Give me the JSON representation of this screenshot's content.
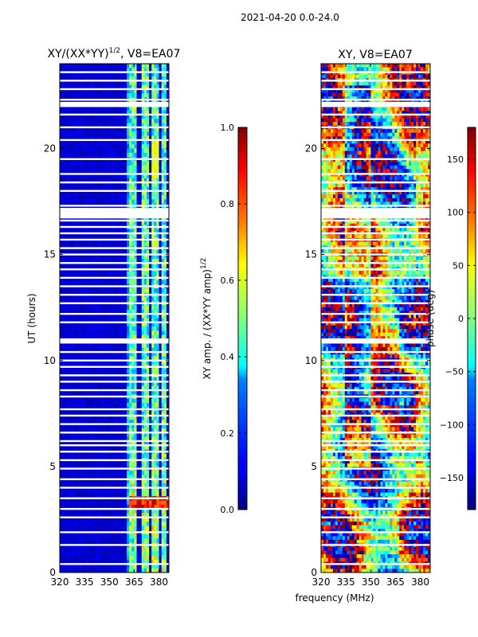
{
  "suptitle": "2021-04-20 0.0-24.0",
  "xlabel_shared": "frequency (MHz)",
  "chart_data": [
    {
      "type": "heatmap",
      "title_main": "XY/(XX*YY)",
      "title_exp": "1/2",
      "title_tail": ", V8=EA07",
      "xlabel": "",
      "ylabel": "UT (hours)",
      "xlim": [
        320,
        386
      ],
      "ylim": [
        0,
        24
      ],
      "x_ticks": [
        320,
        335,
        350,
        365,
        380
      ],
      "x_tick_labels": [
        "320",
        "335",
        "350",
        "365",
        "380"
      ],
      "y_ticks": [
        0,
        5,
        10,
        15,
        20
      ],
      "y_tick_labels": [
        "0",
        "5",
        "10",
        "15",
        "20"
      ],
      "colorbar": {
        "label_main": "XY amp. / (XX*YY amp)",
        "label_exp": "1/2",
        "range": [
          0.0,
          1.0
        ],
        "ticks": [
          0.0,
          0.2,
          0.4,
          0.6,
          0.8,
          1.0
        ],
        "tick_labels": [
          "0.0",
          "0.2",
          "0.4",
          "0.6",
          "0.8",
          "1.0"
        ],
        "colormap": "jet"
      },
      "bright_channels_mhz": [
        [
          362,
          367
        ],
        [
          369,
          374
        ],
        [
          375,
          380
        ],
        [
          381,
          384
        ]
      ],
      "gap_rows_hours": [
        0.4,
        1.3,
        1.9,
        2.6,
        3.0,
        3.5,
        4.0,
        4.4,
        4.9,
        5.3,
        5.7,
        6.0,
        6.2,
        6.6,
        7.0,
        7.4,
        7.7,
        8.3,
        8.6,
        9.0,
        9.3,
        9.7,
        10.0,
        10.4,
        11.0,
        11.8,
        12.2,
        12.7,
        13.1,
        13.5,
        13.9,
        14.3,
        14.6,
        15.0,
        15.3,
        15.7,
        16.0,
        16.3,
        16.6,
        16.9,
        17.3,
        18.0,
        18.4,
        18.8,
        19.5,
        20.4,
        21.0,
        21.6,
        22.0,
        22.3,
        22.8,
        23.2,
        23.6
      ],
      "gap_bands_hours": [
        [
          16.7,
          17.2
        ],
        [
          10.8,
          11.0
        ],
        [
          22.0,
          22.2
        ]
      ],
      "gap_colors": [
        "#ffffff",
        "#ffffff"
      ]
    },
    {
      "type": "heatmap",
      "title": "XY, V8=EA07",
      "xlabel": "frequency (MHz)",
      "ylabel": "",
      "xlim": [
        320,
        386
      ],
      "ylim": [
        0,
        24
      ],
      "x_ticks": [
        320,
        335,
        350,
        365,
        380
      ],
      "x_tick_labels": [
        "320",
        "335",
        "350",
        "365",
        "380"
      ],
      "y_ticks": [
        0,
        5,
        10,
        15,
        20
      ],
      "y_tick_labels": [
        "0",
        "5",
        "10",
        "15",
        "20"
      ],
      "colorbar": {
        "label": "phase (deg)",
        "range": [
          -180,
          180
        ],
        "ticks": [
          -150,
          -100,
          -50,
          0,
          50,
          100,
          150
        ],
        "tick_labels": [
          "−150",
          "−100",
          "−50",
          "0",
          "50",
          "100",
          "150"
        ],
        "colormap": "jet"
      },
      "gap_rows_hours": [
        0.4,
        1.3,
        1.9,
        2.6,
        3.0,
        3.5,
        4.0,
        4.4,
        4.9,
        5.3,
        5.7,
        6.0,
        6.2,
        6.6,
        7.0,
        7.4,
        7.7,
        8.3,
        8.6,
        9.0,
        9.3,
        9.7,
        10.0,
        10.4,
        11.0,
        11.8,
        12.2,
        12.7,
        13.1,
        13.5,
        13.9,
        14.3,
        14.6,
        15.0,
        15.3,
        15.7,
        16.0,
        16.3,
        16.6,
        16.9,
        17.3,
        18.0,
        18.4,
        18.8,
        19.5,
        20.4,
        21.0,
        21.6,
        22.0,
        22.3,
        22.8,
        23.2,
        23.6
      ],
      "gap_bands_hours": [
        [
          16.7,
          17.2
        ],
        [
          10.8,
          11.0
        ],
        [
          22.0,
          22.2
        ]
      ]
    }
  ]
}
